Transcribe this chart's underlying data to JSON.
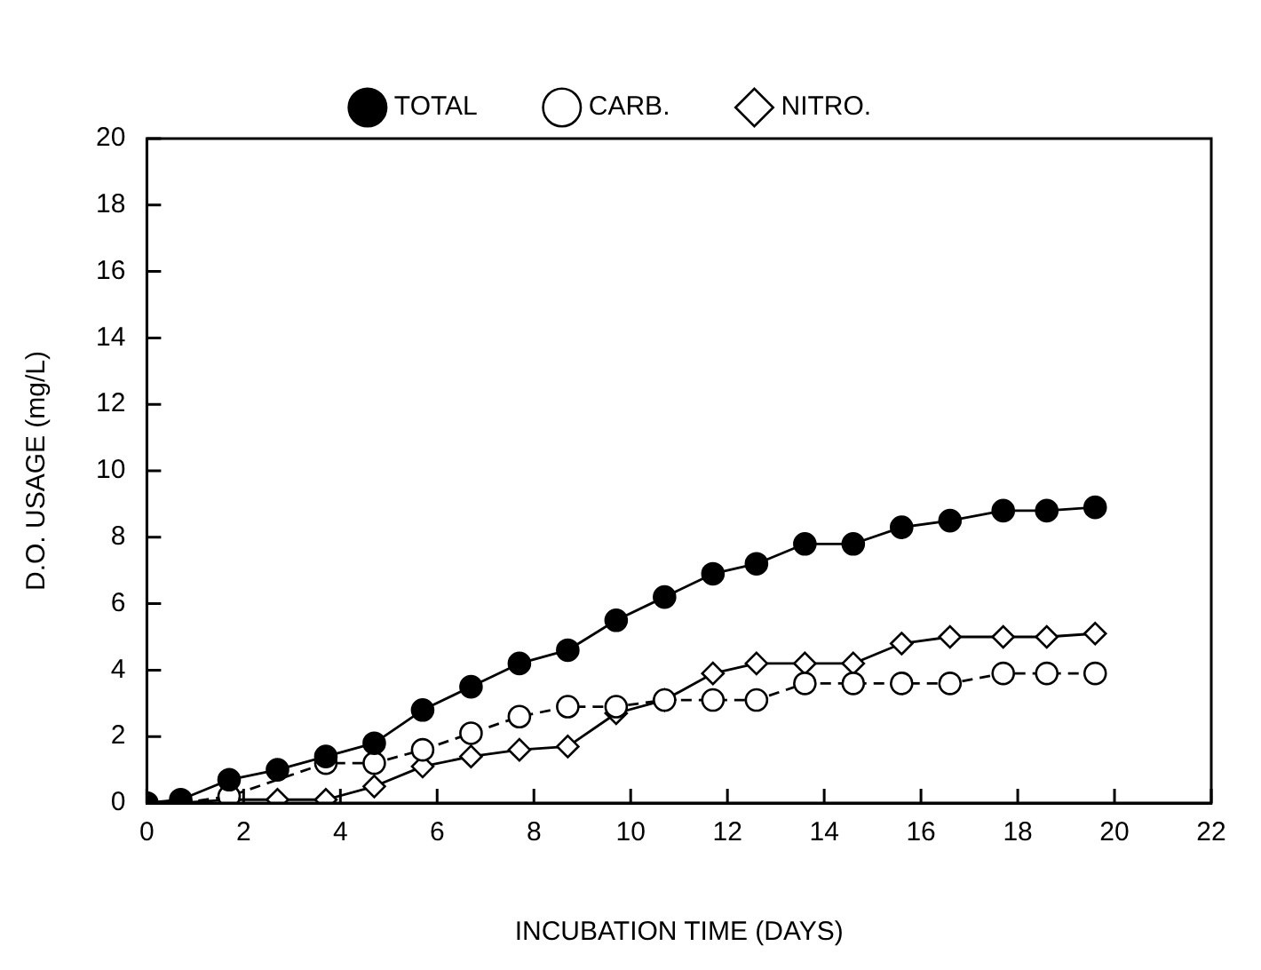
{
  "chart_data": {
    "type": "line",
    "xlabel": "INCUBATION TIME (DAYS)",
    "ylabel": "D.O. USAGE (mg/L)",
    "x": [
      0,
      0.7,
      1.7,
      2.7,
      3.7,
      4.7,
      5.7,
      6.7,
      7.7,
      8.7,
      9.7,
      10.7,
      11.7,
      12.6,
      13.6,
      14.6,
      15.6,
      16.6,
      17.7,
      18.6,
      19.6
    ],
    "series": [
      {
        "name": "TOTAL",
        "color": "#000000",
        "marker": "circle",
        "line_style": "solid",
        "values": [
          0,
          0.1,
          0.7,
          1.0,
          1.4,
          1.8,
          2.8,
          3.5,
          4.2,
          4.6,
          5.5,
          6.2,
          6.9,
          7.2,
          7.8,
          7.8,
          8.3,
          8.5,
          8.8,
          8.8,
          8.9
        ]
      },
      {
        "name": "CARB.",
        "color": "#000000",
        "marker": "circle",
        "line_style": "dashed",
        "values": [
          null,
          0,
          0.2,
          null,
          1.2,
          1.2,
          1.6,
          2.1,
          2.6,
          2.9,
          2.9,
          3.1,
          3.1,
          3.1,
          3.6,
          3.6,
          3.6,
          3.6,
          3.9,
          3.9,
          3.9
        ]
      },
      {
        "name": "NITRO.",
        "color": "#000000",
        "marker": "diamond",
        "line_style": "solid",
        "values": [
          null,
          0,
          0.1,
          0.1,
          0.1,
          0.5,
          1.1,
          1.4,
          1.6,
          1.7,
          2.7,
          3.1,
          3.9,
          4.2,
          4.2,
          4.2,
          4.8,
          5.0,
          5.0,
          5.0,
          5.1
        ]
      }
    ],
    "xlim": [
      0,
      22
    ],
    "xticks": [
      0,
      2,
      4,
      6,
      8,
      10,
      12,
      14,
      16,
      18,
      20,
      22
    ],
    "ylim": [
      0,
      20
    ],
    "yticks": [
      0,
      2,
      4,
      6,
      8,
      10,
      12,
      14,
      16,
      18,
      20
    ],
    "grid": false,
    "legend": "top"
  }
}
